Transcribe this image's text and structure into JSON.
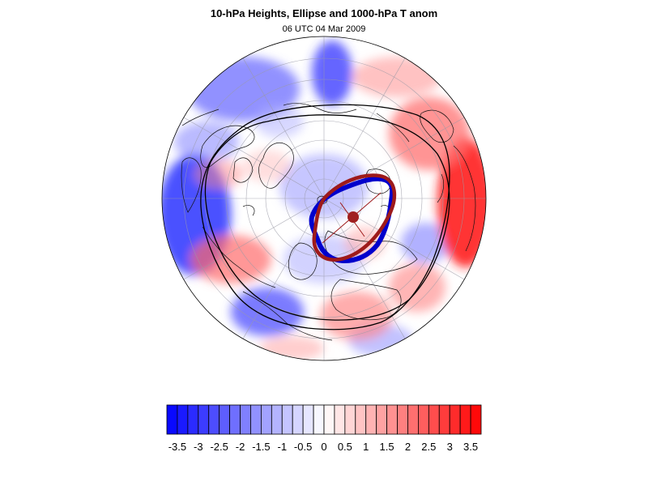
{
  "title": "10-hPa Heights, Ellipse and 1000-hPa T anom",
  "subtitle": "06 UTC 04 Mar 2009",
  "colors": {
    "negative_max": "#0000ff",
    "positive_max": "#ff0000",
    "neutral": "#ffffff",
    "height_contour": "#000000",
    "vortex_edge": "#0000cc",
    "fitted_ellipse": "#9e1a1a"
  },
  "colorbar": {
    "min": -3.75,
    "max": 3.75,
    "step": 0.25,
    "tick_labels": [
      "-3.5",
      "-3",
      "-2.5",
      "-2",
      "-1.5",
      "-1",
      "-0.5",
      "0",
      "0.5",
      "1",
      "1.5",
      "2",
      "2.5",
      "3",
      "3.5"
    ]
  },
  "icons": {
    "map": "north-polar-orthographic-map",
    "ellipse_center": "ellipse-center-dot"
  }
}
